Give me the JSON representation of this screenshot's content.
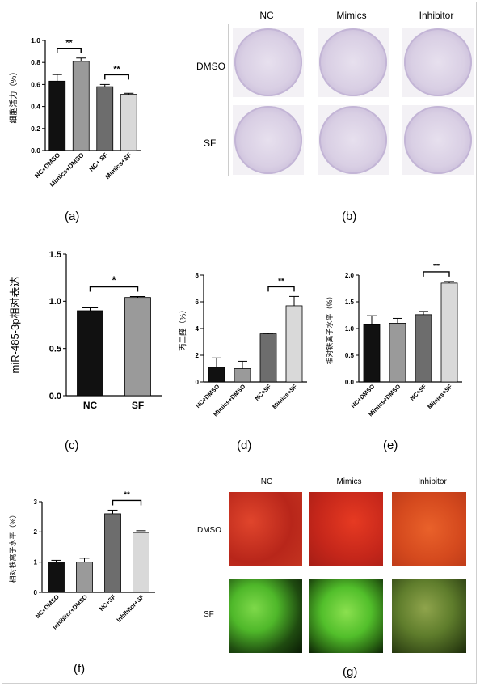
{
  "panel_letters": {
    "a": "(a)",
    "b": "(b)",
    "c": "(c)",
    "d": "(d)",
    "e": "(e)",
    "f": "(f)",
    "g": "(g)"
  },
  "panel_b": {
    "columns": [
      "NC",
      "Mimics",
      "Inhibitor"
    ],
    "rows": [
      "DMSO",
      "SF"
    ],
    "dish_tint": "#b7a5cc"
  },
  "panel_g": {
    "columns": [
      "NC",
      "Mimics",
      "Inhibitor"
    ],
    "rows": [
      "DMSO",
      "SF"
    ],
    "dmso_color": "#d4331f",
    "sf_color": "#4fb82a"
  },
  "chart_data": [
    {
      "id": "a",
      "type": "bar",
      "ylabel": "细胞活力（%）",
      "xlabel": "",
      "categories": [
        "NC+DMSO",
        "Mimics+DMSO",
        "NC+ SF",
        "Mimics+SF"
      ],
      "values": [
        0.63,
        0.81,
        0.58,
        0.51
      ],
      "errors": [
        0.06,
        0.03,
        0.02,
        0.01
      ],
      "colors": [
        "#111111",
        "#9a9a9a",
        "#6d6d6d",
        "#d9d9d9"
      ],
      "ylim": [
        0,
        1.0
      ],
      "yticks": [
        "0.0",
        "0.2",
        "0.4",
        "0.6",
        "0.8",
        "1.0"
      ],
      "significance": [
        {
          "from": 0,
          "to": 1,
          "label": "**"
        },
        {
          "from": 2,
          "to": 3,
          "label": "**"
        }
      ]
    },
    {
      "id": "c",
      "type": "bar",
      "ylabel": "miR-485-3p相对表达",
      "xlabel": "",
      "categories": [
        "NC",
        "SF"
      ],
      "values": [
        0.9,
        1.04
      ],
      "errors": [
        0.03,
        0.01
      ],
      "colors": [
        "#111111",
        "#9a9a9a"
      ],
      "ylim": [
        0,
        1.5
      ],
      "yticks": [
        "0.0",
        "0.5",
        "1.0",
        "1.5"
      ],
      "significance": [
        {
          "from": 0,
          "to": 1,
          "label": "*"
        }
      ]
    },
    {
      "id": "d",
      "type": "bar",
      "ylabel": "丙二醛（%）",
      "xlabel": "",
      "categories": [
        "NC+DMSO",
        "Mimics+DMSO",
        "NC+SF",
        "Mimics+SF"
      ],
      "values": [
        1.1,
        1.0,
        3.6,
        5.7
      ],
      "errors": [
        0.7,
        0.55,
        0.05,
        0.7
      ],
      "colors": [
        "#111111",
        "#9a9a9a",
        "#6d6d6d",
        "#d9d9d9"
      ],
      "ylim": [
        0,
        8
      ],
      "yticks": [
        "0",
        "2",
        "4",
        "6",
        "8"
      ],
      "significance": [
        {
          "from": 2,
          "to": 3,
          "label": "**"
        }
      ]
    },
    {
      "id": "e",
      "type": "bar",
      "ylabel": "相对铁离子水平（%）",
      "xlabel": "",
      "categories": [
        "NC+DMSO",
        "Mimics+DMSO",
        "NC+SF",
        "Mimics+SF"
      ],
      "values": [
        1.07,
        1.1,
        1.26,
        1.85
      ],
      "errors": [
        0.17,
        0.09,
        0.06,
        0.03
      ],
      "colors": [
        "#111111",
        "#9a9a9a",
        "#6d6d6d",
        "#d9d9d9"
      ],
      "ylim": [
        0,
        2.0
      ],
      "yticks": [
        "0.0",
        "0.5",
        "1.0",
        "1.5",
        "2.0"
      ],
      "significance": [
        {
          "from": 2,
          "to": 3,
          "label": "**"
        }
      ]
    },
    {
      "id": "f",
      "type": "bar",
      "ylabel": "相对铁离子水平（%）",
      "xlabel": "",
      "categories": [
        "NC+DMSO",
        "Inhibitor+DMSO",
        "NC+SF",
        "Inhibitor+SF"
      ],
      "values": [
        1.0,
        1.0,
        2.6,
        1.98
      ],
      "errors": [
        0.06,
        0.13,
        0.12,
        0.06
      ],
      "colors": [
        "#111111",
        "#9a9a9a",
        "#6d6d6d",
        "#d9d9d9"
      ],
      "ylim": [
        0,
        3
      ],
      "yticks": [
        "0",
        "1",
        "2",
        "3"
      ],
      "significance": [
        {
          "from": 2,
          "to": 3,
          "label": "**"
        }
      ]
    }
  ]
}
